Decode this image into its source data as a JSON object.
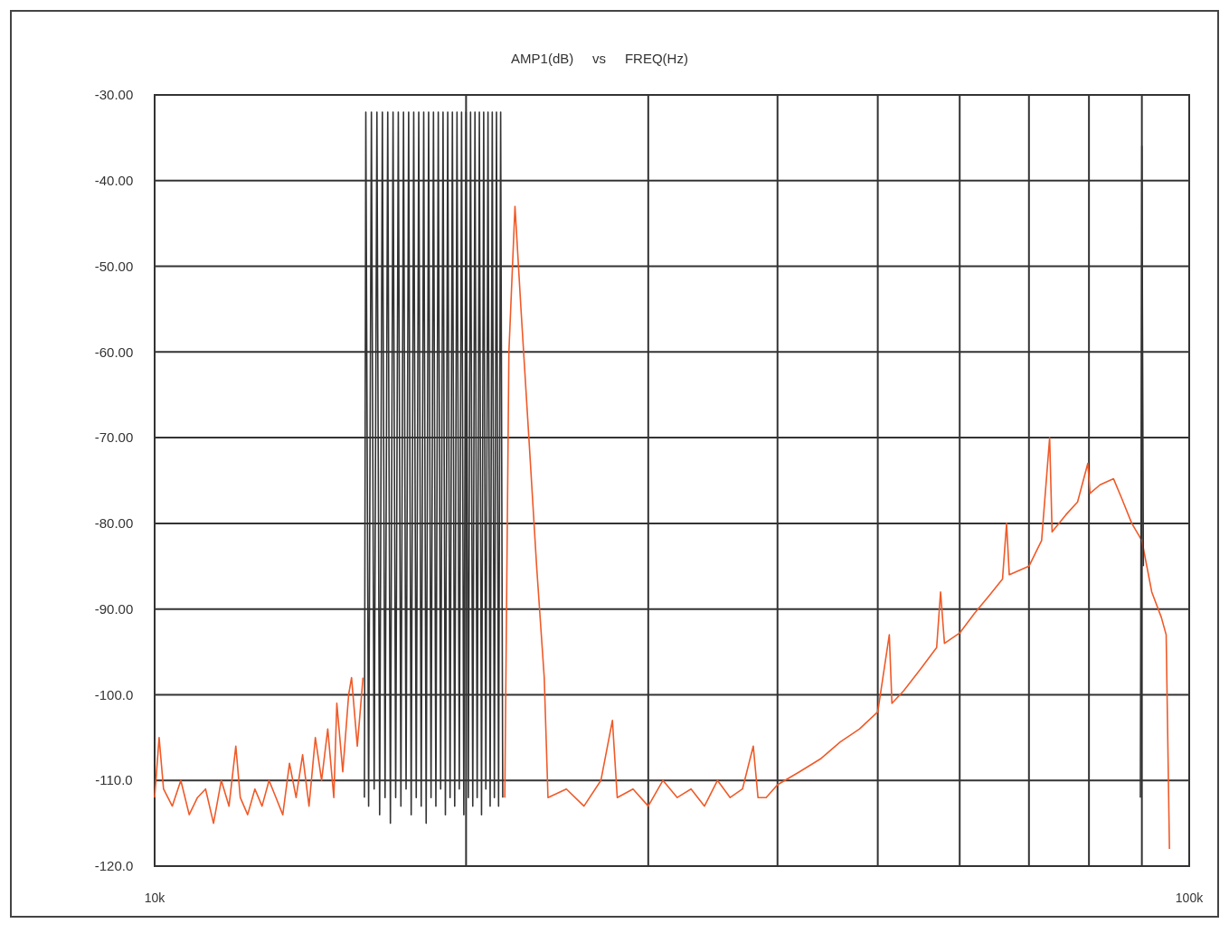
{
  "chart_data": {
    "type": "line",
    "title": "AMP1(dB)     vs     FREQ(Hz)",
    "log": "x",
    "grid": true,
    "marker": "none",
    "line_style": "solid",
    "xlim": [
      10000,
      100000
    ],
    "xticks": [
      {
        "value": 10000,
        "label": "10k"
      },
      {
        "value": 20000,
        "label": null
      },
      {
        "value": 30000,
        "label": null
      },
      {
        "value": 40000,
        "label": null
      },
      {
        "value": 50000,
        "label": null
      },
      {
        "value": 60000,
        "label": null
      },
      {
        "value": 70000,
        "label": null
      },
      {
        "value": 80000,
        "label": null
      },
      {
        "value": 90000,
        "label": null
      },
      {
        "value": 100000,
        "label": "100k"
      }
    ],
    "ylim": [
      -120,
      -30
    ],
    "yticks": [
      {
        "value": -30,
        "label": "-30.00"
      },
      {
        "value": -40,
        "label": "-40.00"
      },
      {
        "value": -50,
        "label": "-50.00"
      },
      {
        "value": -60,
        "label": "-60.00"
      },
      {
        "value": -70,
        "label": "-70.00"
      },
      {
        "value": -80,
        "label": "-80.00"
      },
      {
        "value": -90,
        "label": "-90.00"
      },
      {
        "value": -100,
        "label": "-100.0"
      },
      {
        "value": -110,
        "label": "-110.0"
      },
      {
        "value": -120,
        "label": "-120.0"
      }
    ],
    "series": [
      {
        "color": "#f05a28",
        "x": [
          10000,
          10100,
          10200,
          10400,
          10600,
          10800,
          11000,
          11200,
          11400,
          11600,
          11800,
          11980,
          12100,
          12300,
          12500,
          12700,
          12900,
          13100,
          13300,
          13500,
          13700,
          13900,
          14100,
          14300,
          14500,
          14700,
          14900,
          15000,
          15200,
          15400,
          15500,
          15700,
          15900,
          18800,
          21800,
          22000,
          22300,
          22600,
          23000,
          23400,
          23800,
          24000,
          25000,
          26000,
          27000,
          27700,
          28000,
          29000,
          30000,
          31000,
          32000,
          33000,
          34000,
          35000,
          36000,
          37000,
          37900,
          38300,
          39000,
          40000,
          42000,
          44000,
          46000,
          48000,
          50000,
          51300,
          51600,
          53000,
          55000,
          57000,
          57500,
          58000,
          60000,
          62000,
          64000,
          66000,
          66600,
          67000,
          70000,
          72000,
          73300,
          73700,
          76000,
          78000,
          79800,
          80200,
          82000,
          84500,
          86000,
          88000,
          90000,
          92000,
          94000,
          95000,
          95700
        ],
        "values": [
          -112,
          -105,
          -111,
          -113,
          -110,
          -114,
          -112,
          -111,
          -115,
          -110,
          -113,
          -106,
          -112,
          -114,
          -111,
          -113,
          -110,
          -112,
          -114,
          -108,
          -112,
          -107,
          -113,
          -105,
          -110,
          -104,
          -112,
          -101,
          -109,
          -100,
          -98,
          -106,
          -98,
          null,
          -112,
          -60,
          -43,
          -55,
          -70,
          -85,
          -98,
          -112,
          -111,
          -113,
          -110,
          -103,
          -112,
          -111,
          -113,
          -110,
          -112,
          -111,
          -113,
          -110,
          -112,
          -111,
          -106,
          -112,
          -112,
          -110.5,
          -109,
          -107.5,
          -105.5,
          -104,
          -102,
          -93,
          -101,
          -99.5,
          -97,
          -94.5,
          -88,
          -94,
          -92.8,
          -90.5,
          -88.5,
          -86.5,
          -80,
          -86,
          -85,
          -82,
          -70,
          -81,
          -79,
          -77.5,
          -73,
          -76.5,
          -75.5,
          -74.8,
          -77,
          -80,
          -82,
          -88,
          -91,
          -93,
          -118
        ]
      },
      {
        "color": "#333333",
        "x": [
          15950,
          16000,
          16100,
          16200,
          16300,
          16400,
          16500,
          16600,
          16700,
          16800,
          16900,
          17000,
          17100,
          17200,
          17300,
          17400,
          17500,
          17600,
          17700,
          17800,
          17900,
          18000,
          18100,
          18200,
          18300,
          18400,
          18500,
          18600,
          18700,
          18800,
          18900,
          19000,
          19100,
          19200,
          19300,
          19400,
          19500,
          19600,
          19700,
          19800,
          19900,
          20000,
          20100,
          20200,
          20300,
          20400,
          20500,
          20600,
          20700,
          20800,
          20900,
          21000,
          21100,
          21200,
          21300,
          21400,
          21500,
          21600,
          21700,
          50000,
          89700,
          90000,
          90300
        ],
        "values": [
          -112,
          -32,
          -113,
          -32,
          -111,
          -32,
          -114,
          -32,
          -112,
          -32,
          -115,
          -32,
          -112,
          -32,
          -113,
          -32,
          -111,
          -32,
          -114,
          -32,
          -112,
          -32,
          -113,
          -32,
          -115,
          -32,
          -112,
          -32,
          -113,
          -32,
          -111,
          -32,
          -114,
          -32,
          -112,
          -32,
          -113,
          -32,
          -111,
          -32,
          -114,
          -32,
          -112,
          -32,
          -113,
          -32,
          -112,
          -32,
          -114,
          -32,
          -111,
          -32,
          -113,
          -32,
          -112,
          -32,
          -113,
          -32,
          -112,
          null,
          -112,
          -36,
          -85
        ]
      }
    ]
  }
}
